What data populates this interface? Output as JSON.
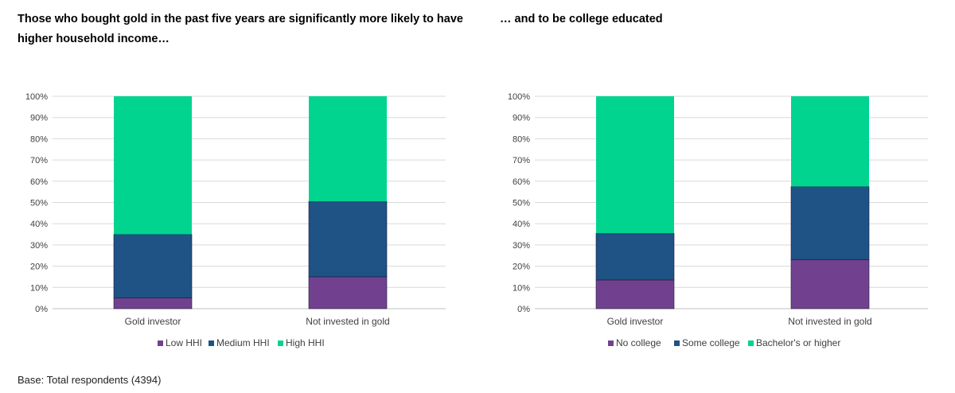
{
  "footnote": "Base: Total respondents (4394)",
  "chart_data": [
    {
      "type": "bar",
      "stacked": true,
      "title": "Those who bought gold in the past five years are significantly  more likely to have higher household income…",
      "categories": [
        "Gold investor",
        "Not invested in gold"
      ],
      "series": [
        {
          "name": "Low HHI",
          "color": "#71418f",
          "values": [
            5,
            15
          ]
        },
        {
          "name": "Medium HHI",
          "color": "#1f5285",
          "values": [
            30,
            35.5
          ]
        },
        {
          "name": "High HHI",
          "color": "#00d48f",
          "values": [
            65,
            49.5
          ]
        }
      ],
      "yticks": [
        "0%",
        "10%",
        "20%",
        "30%",
        "40%",
        "50%",
        "60%",
        "70%",
        "80%",
        "90%",
        "100%"
      ],
      "ylim": [
        0,
        100
      ],
      "grid": true,
      "legend": "bottom"
    },
    {
      "type": "bar",
      "stacked": true,
      "title": "… and to be college educated",
      "categories": [
        "Gold investor",
        "Not invested in gold"
      ],
      "series": [
        {
          "name": "No college",
          "color": "#71418f",
          "values": [
            13.5,
            23
          ]
        },
        {
          "name": "Some college",
          "color": "#1f5285",
          "values": [
            22,
            34.5
          ]
        },
        {
          "name": "Bachelor's or higher",
          "color": "#00d48f",
          "values": [
            64.5,
            42.5
          ]
        }
      ],
      "yticks": [
        "0%",
        "10%",
        "20%",
        "30%",
        "40%",
        "50%",
        "60%",
        "70%",
        "80%",
        "90%",
        "100%"
      ],
      "ylim": [
        0,
        100
      ],
      "grid": true,
      "legend": "bottom"
    }
  ]
}
